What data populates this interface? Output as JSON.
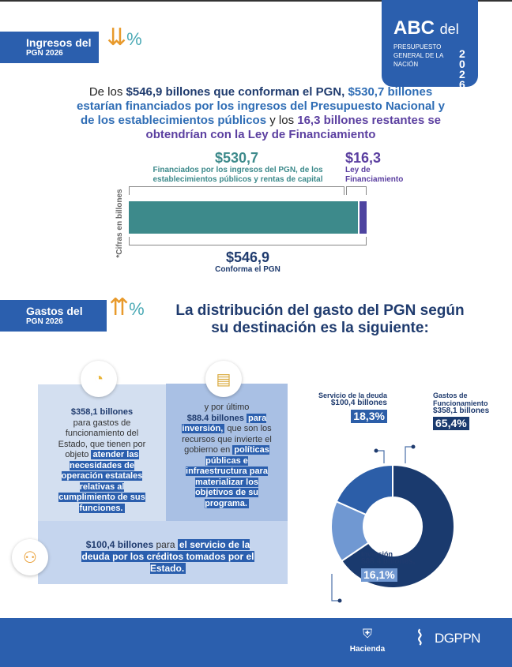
{
  "badge": {
    "abc": "ABC",
    "del": "del",
    "subtitle": "PRESUPUESTO GENERAL DE LA NACIÓN",
    "year": "2026"
  },
  "ingresos": {
    "section_title": "Ingresos del",
    "section_sub": "PGN 2026",
    "intro": {
      "p1": "De los ",
      "p2": "$546,9 billones que conforman el PGN, ",
      "p3": "$530,7 billones estarían financiados por los ingresos del Presupuesto Nacional y de los establecimientos públicos",
      "p4": " y los ",
      "p5": "16,3 billones restantes se obtendrían con la Ley de Financiamiento"
    },
    "bar": {
      "left_value": "$530,7",
      "left_label": "Financiados por los ingresos del PGN, de los establecimientos públicos y rentas de capital",
      "right_value": "$16,3",
      "right_label": "Ley de Financiamiento",
      "total_value": "$546,9",
      "total_label": "Conforma el PGN",
      "axis_note": "*Cifras en billones",
      "values": [
        530.7,
        16.3
      ],
      "colors": [
        "#3d8a8b",
        "#4e44a0"
      ]
    }
  },
  "gastos": {
    "section_title": "Gastos del",
    "section_sub": "PGN 2026",
    "title": "La distribución del gasto del PGN según su destinación es la siguiente:",
    "box1": {
      "amount": "$358,1 billones",
      "text": "para gastos de funcionamiento del Estado, que tienen por objeto",
      "highlight": "atender las necesidades de operación estatales relativas al cumplimiento de sus funciones.",
      "icon": "pie-chart-icon"
    },
    "box2": {
      "pre": "y por último",
      "amount": "$88.4 billones",
      "hl1": "para inversión,",
      "text": "que son los recursos que invierte el gobierno en",
      "highlight": "políticas públicas e infraestructura para materializar los objetivos de su programa.",
      "icon": "blueprint-icon"
    },
    "box3": {
      "amount": "$100,4 billones",
      "text": "para",
      "highlight": "el servicio de la deuda por los créditos tomados por el Estado.",
      "icon": "handshake-globe-icon"
    },
    "donut": {
      "segments": [
        {
          "label": "Gastos de Funcionamiento",
          "amount": "$358,1 billones",
          "pct_label": "65,4%",
          "value": 65.4,
          "color": "#1a3a6e"
        },
        {
          "label": "Inversión",
          "amount": "$88.4 billones,",
          "pct_label": "16,1%",
          "value": 16.1,
          "color": "#7098d2"
        },
        {
          "label": "Servicio de la deuda",
          "amount": "$100,4 billones",
          "pct_label": "18,3%",
          "value": 18.3,
          "color": "#2c5ea8"
        }
      ]
    }
  },
  "footer": {
    "hacienda": "Hacienda",
    "dgppn": "DGPPN"
  }
}
